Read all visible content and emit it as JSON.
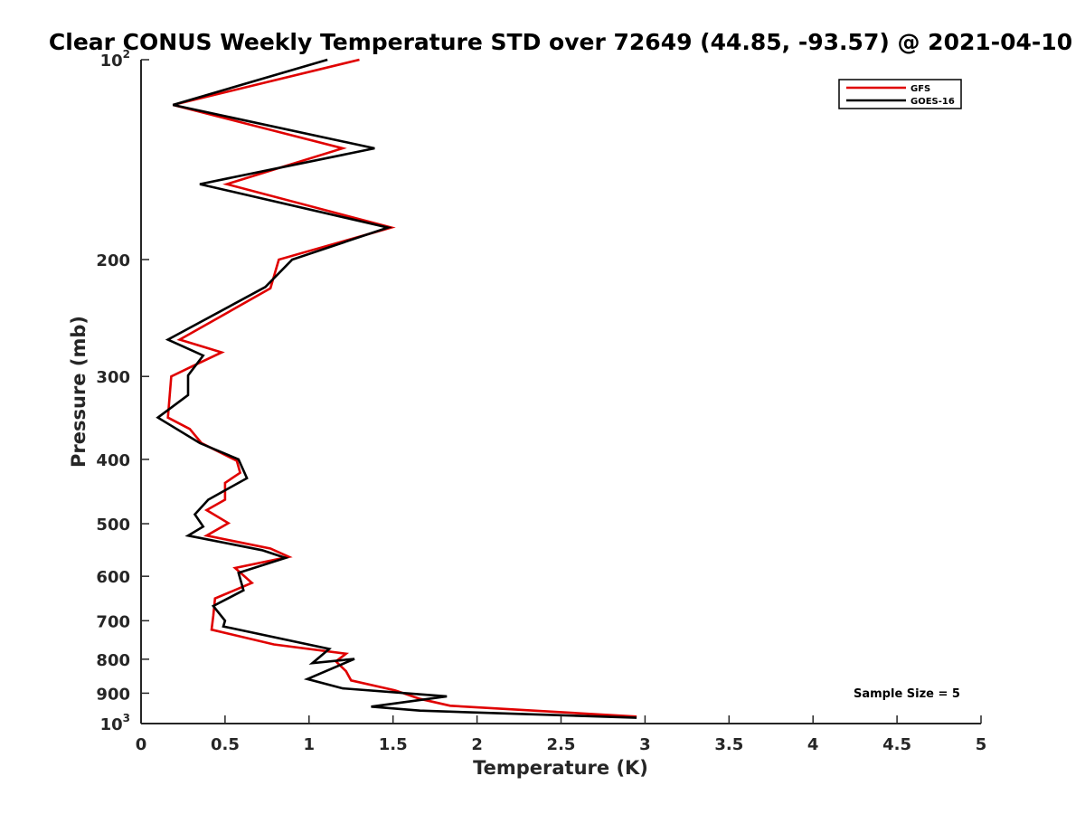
{
  "chart_data": {
    "type": "line",
    "title": "Clear CONUS Weekly Temperature STD over 72649 (44.85, -93.57) @ 2021-04-10",
    "xlabel": "Temperature (K)",
    "ylabel": "Pressure (mb)",
    "xlim": [
      0,
      5
    ],
    "ylim": [
      100,
      1000
    ],
    "y_scale": "log",
    "y_reversed": true,
    "x_ticks": [
      "0",
      "0.5",
      "1",
      "1.5",
      "2",
      "2.5",
      "3",
      "3.5",
      "4",
      "4.5",
      "5"
    ],
    "y_ticks": [
      {
        "value": 100,
        "base": "10",
        "exp": "2"
      },
      {
        "value": 200,
        "label": "200"
      },
      {
        "value": 300,
        "label": "300"
      },
      {
        "value": 400,
        "label": "400"
      },
      {
        "value": 500,
        "label": "500"
      },
      {
        "value": 600,
        "label": "600"
      },
      {
        "value": 700,
        "label": "700"
      },
      {
        "value": 800,
        "label": "800"
      },
      {
        "value": 900,
        "label": "900"
      },
      {
        "value": 1000,
        "base": "10",
        "exp": "3"
      }
    ],
    "grid": false,
    "legend_position": "top-right",
    "annotation": "Sample Size = 5",
    "series": [
      {
        "name": "GFS",
        "color": "#e00000",
        "points": [
          {
            "x": 1.3,
            "p": 100
          },
          {
            "x": 0.19,
            "p": 117
          },
          {
            "x": 1.2,
            "p": 136
          },
          {
            "x": 0.51,
            "p": 154
          },
          {
            "x": 1.49,
            "p": 179
          },
          {
            "x": 0.82,
            "p": 200
          },
          {
            "x": 0.77,
            "p": 221
          },
          {
            "x": 0.23,
            "p": 264
          },
          {
            "x": 0.48,
            "p": 276
          },
          {
            "x": 0.3,
            "p": 290
          },
          {
            "x": 0.18,
            "p": 300
          },
          {
            "x": 0.16,
            "p": 346
          },
          {
            "x": 0.29,
            "p": 360
          },
          {
            "x": 0.36,
            "p": 378
          },
          {
            "x": 0.57,
            "p": 402
          },
          {
            "x": 0.59,
            "p": 419
          },
          {
            "x": 0.5,
            "p": 434
          },
          {
            "x": 0.5,
            "p": 460
          },
          {
            "x": 0.39,
            "p": 477
          },
          {
            "x": 0.52,
            "p": 499
          },
          {
            "x": 0.39,
            "p": 521
          },
          {
            "x": 0.77,
            "p": 545
          },
          {
            "x": 0.88,
            "p": 561
          },
          {
            "x": 0.56,
            "p": 583
          },
          {
            "x": 0.66,
            "p": 614
          },
          {
            "x": 0.44,
            "p": 648
          },
          {
            "x": 0.43,
            "p": 688
          },
          {
            "x": 0.42,
            "p": 722
          },
          {
            "x": 0.79,
            "p": 760
          },
          {
            "x": 1.22,
            "p": 785
          },
          {
            "x": 1.16,
            "p": 806
          },
          {
            "x": 1.22,
            "p": 834
          },
          {
            "x": 1.25,
            "p": 861
          },
          {
            "x": 1.51,
            "p": 891
          },
          {
            "x": 1.66,
            "p": 918
          },
          {
            "x": 1.84,
            "p": 940
          },
          {
            "x": 2.95,
            "p": 976
          }
        ]
      },
      {
        "name": "GOES-16",
        "color": "#000000",
        "points": [
          {
            "x": 1.11,
            "p": 100
          },
          {
            "x": 0.19,
            "p": 117
          },
          {
            "x": 1.39,
            "p": 136
          },
          {
            "x": 0.35,
            "p": 154
          },
          {
            "x": 1.47,
            "p": 179
          },
          {
            "x": 0.9,
            "p": 200
          },
          {
            "x": 0.74,
            "p": 220
          },
          {
            "x": 0.16,
            "p": 264
          },
          {
            "x": 0.37,
            "p": 279
          },
          {
            "x": 0.28,
            "p": 299
          },
          {
            "x": 0.28,
            "p": 320
          },
          {
            "x": 0.1,
            "p": 346
          },
          {
            "x": 0.35,
            "p": 378
          },
          {
            "x": 0.58,
            "p": 400
          },
          {
            "x": 0.63,
            "p": 427
          },
          {
            "x": 0.4,
            "p": 460
          },
          {
            "x": 0.32,
            "p": 484
          },
          {
            "x": 0.37,
            "p": 505
          },
          {
            "x": 0.28,
            "p": 521
          },
          {
            "x": 0.72,
            "p": 548
          },
          {
            "x": 0.86,
            "p": 563
          },
          {
            "x": 0.58,
            "p": 593
          },
          {
            "x": 0.61,
            "p": 630
          },
          {
            "x": 0.43,
            "p": 665
          },
          {
            "x": 0.5,
            "p": 700
          },
          {
            "x": 0.49,
            "p": 714
          },
          {
            "x": 1.12,
            "p": 772
          },
          {
            "x": 1.02,
            "p": 811
          },
          {
            "x": 1.27,
            "p": 799
          },
          {
            "x": 0.99,
            "p": 857
          },
          {
            "x": 1.2,
            "p": 885
          },
          {
            "x": 1.82,
            "p": 910
          },
          {
            "x": 1.37,
            "p": 943
          },
          {
            "x": 1.66,
            "p": 956
          },
          {
            "x": 2.95,
            "p": 980
          }
        ]
      }
    ]
  }
}
